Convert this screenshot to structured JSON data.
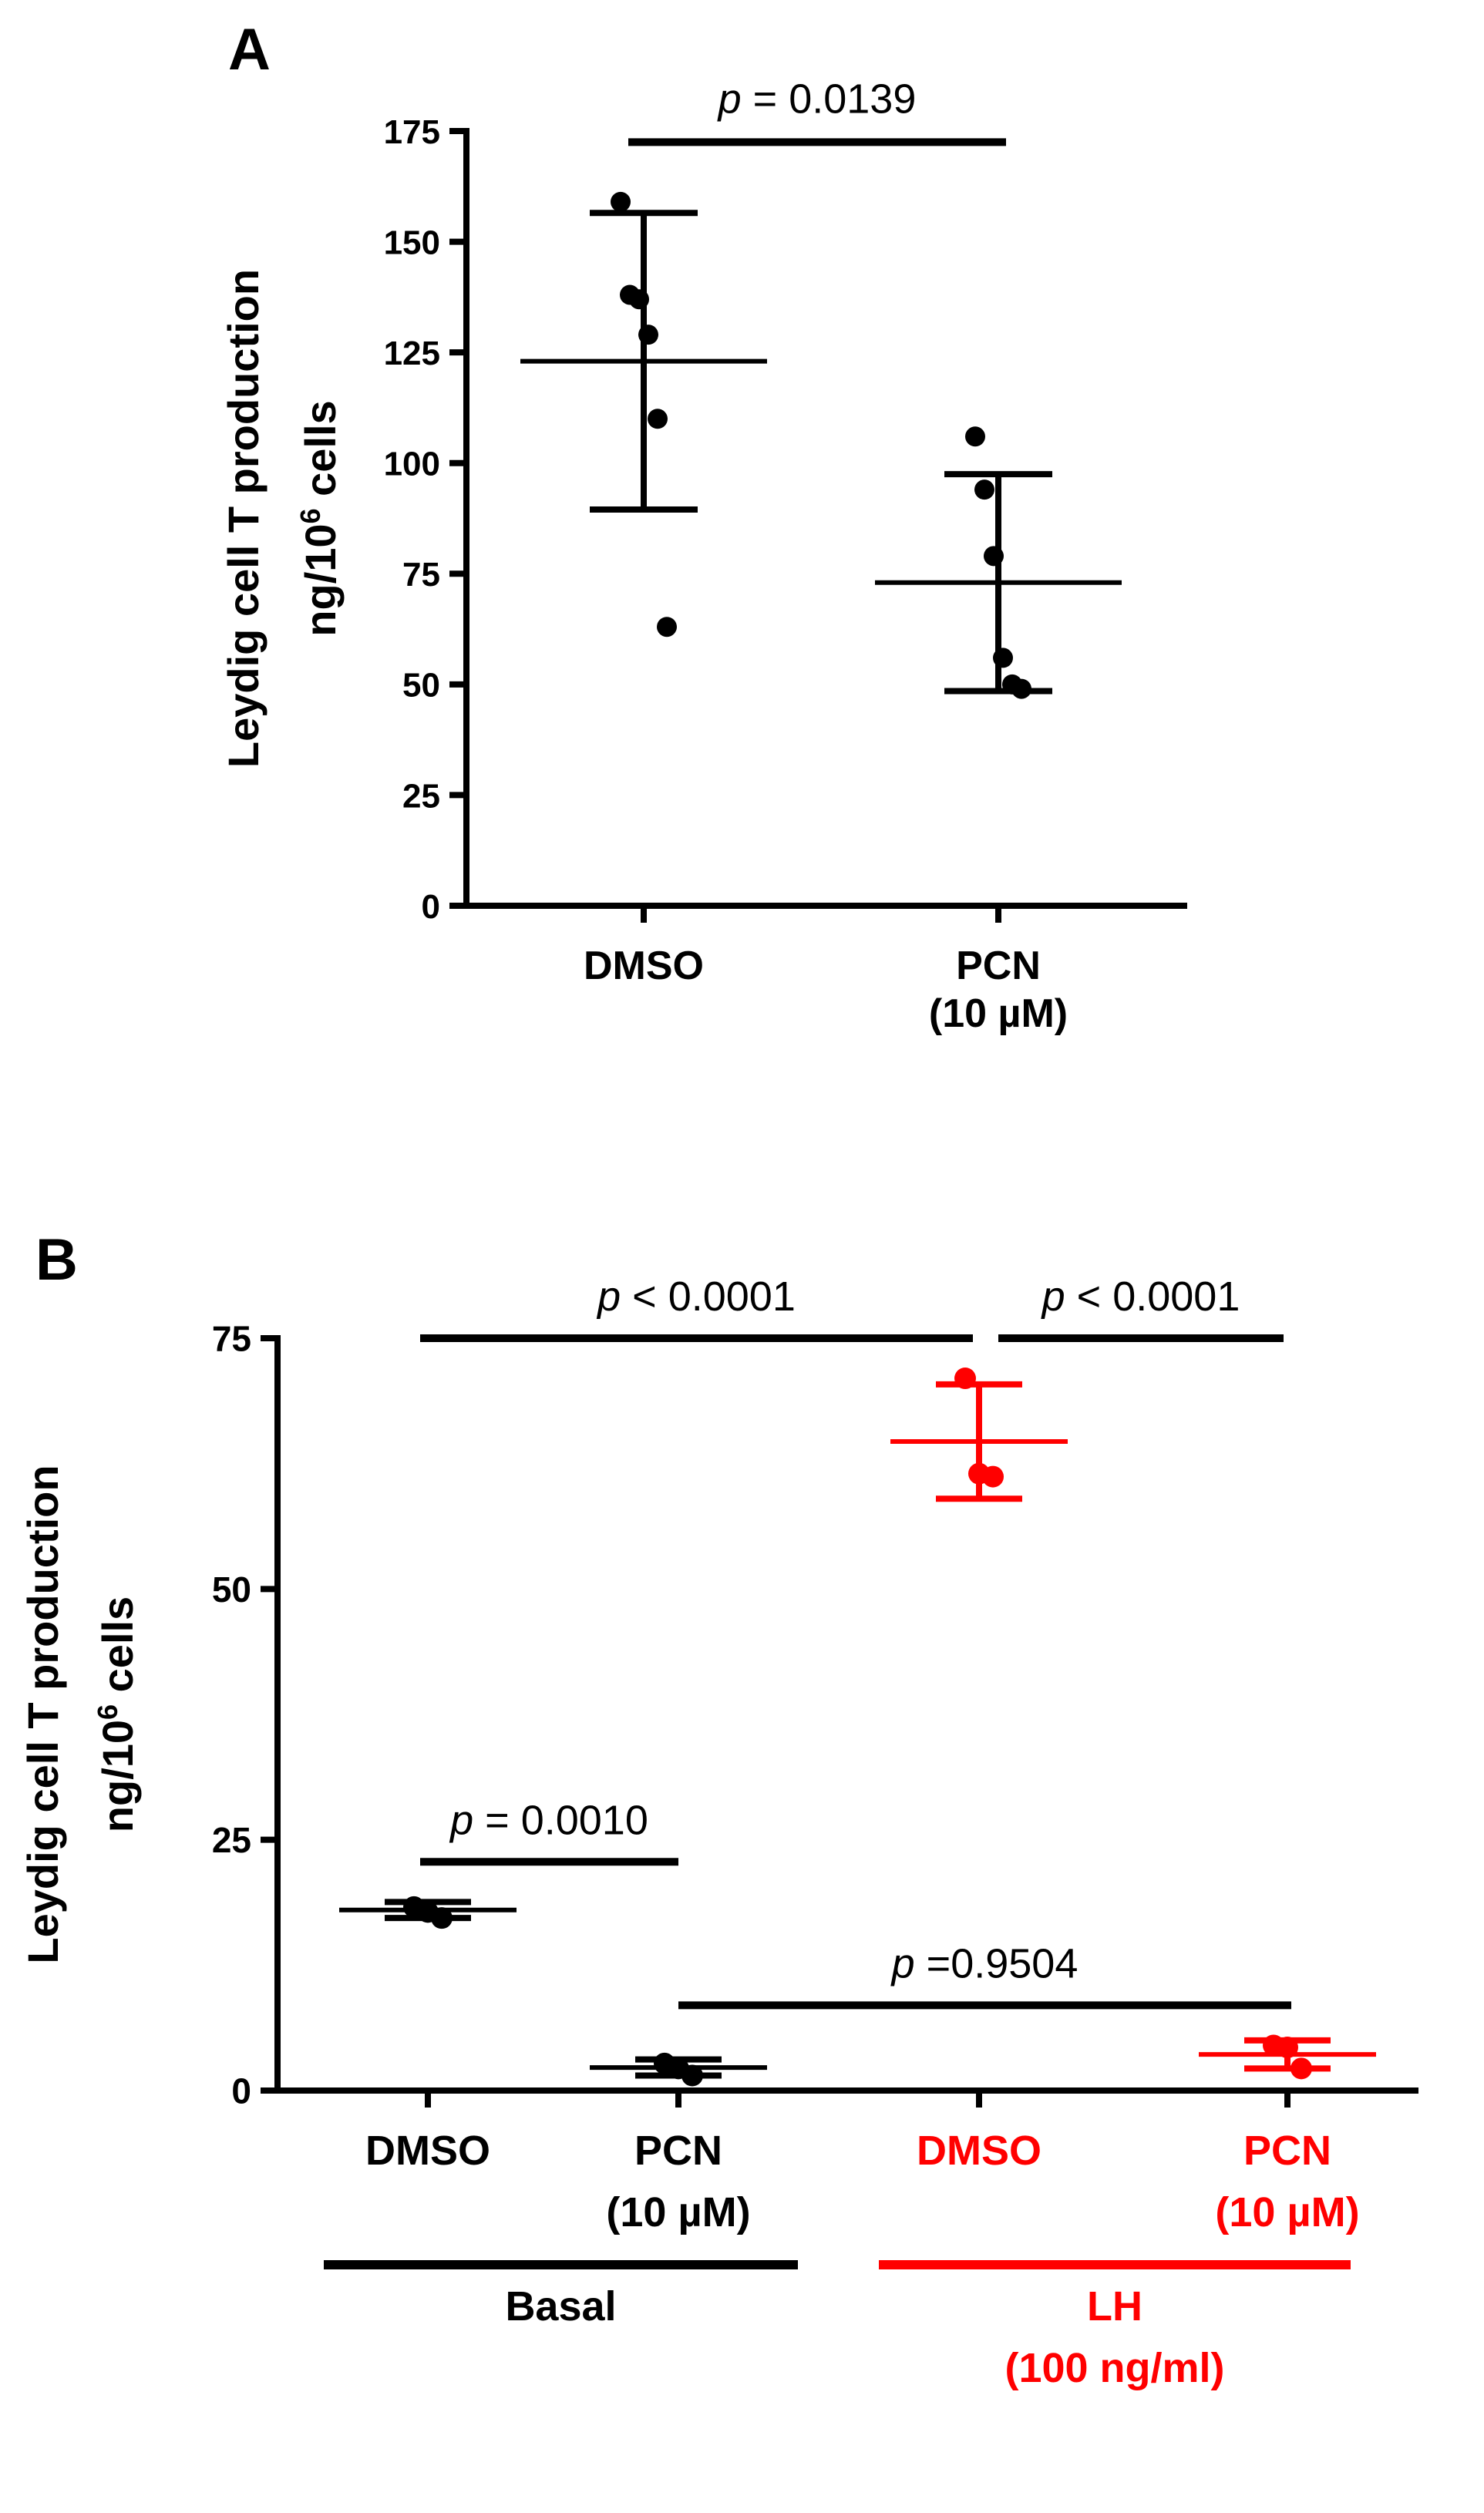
{
  "colors": {
    "black": "#000000",
    "red": "#ff0000"
  },
  "chart_data": [
    {
      "panel": "A",
      "type": "scatter",
      "ylabel_line1": "Leydig cell T production",
      "ylabel_line2_prefix": "ng/10",
      "ylabel_line2_sup": "6",
      "ylabel_line2_suffix": " cells",
      "ylim": [
        0,
        175
      ],
      "yticks": [
        0,
        25,
        50,
        75,
        100,
        125,
        150,
        175
      ],
      "groups": [
        {
          "label_lines": [
            "DMSO"
          ],
          "color": "#000000",
          "mean": 123,
          "sd_low": 89.5,
          "sd_high": 156.5,
          "points": [
            159,
            138,
            137,
            129,
            110,
            63
          ]
        },
        {
          "label_lines": [
            "PCN",
            "(10 µM)"
          ],
          "color": "#000000",
          "mean": 73,
          "sd_low": 48.5,
          "sd_high": 97.5,
          "points": [
            106,
            94,
            79,
            56,
            50,
            49
          ]
        }
      ],
      "comparisons": [
        {
          "p_symbol": "p",
          "p_rest": " = 0.0139",
          "from": 0,
          "to": 1,
          "y": 172.5
        }
      ]
    },
    {
      "panel": "B",
      "type": "scatter",
      "ylabel_line1": "Leydig cell T production",
      "ylabel_line2_prefix": "ng/10",
      "ylabel_line2_sup": "6",
      "ylabel_line2_suffix": " cells",
      "ylim": [
        0,
        75
      ],
      "yticks": [
        0,
        25,
        50,
        75
      ],
      "groups": [
        {
          "label_lines": [
            "DMSO"
          ],
          "color": "#000000",
          "mean": 18,
          "sd_low": 17.2,
          "sd_high": 18.8,
          "points": [
            18.3,
            17.8,
            17.2
          ]
        },
        {
          "label_lines": [
            "PCN",
            "(10 µM)"
          ],
          "color": "#000000",
          "mean": 2.3,
          "sd_low": 1.5,
          "sd_high": 3.1,
          "points": [
            2.7,
            2.2,
            1.5
          ]
        },
        {
          "label_lines": [
            "DMSO"
          ],
          "color": "#ff0000",
          "mean": 64.7,
          "sd_low": 59,
          "sd_high": 70.4,
          "points": [
            71,
            61.5,
            61.2
          ]
        },
        {
          "label_lines": [
            "PCN",
            "(10 µM)"
          ],
          "color": "#ff0000",
          "mean": 3.6,
          "sd_low": 2.2,
          "sd_high": 5,
          "points": [
            4.5,
            4.3,
            2.2
          ]
        }
      ],
      "comparisons": [
        {
          "p_symbol": "p",
          "p_rest": " < 0.0001",
          "from": 0,
          "to": 2,
          "y": 75,
          "end_gap": "left"
        },
        {
          "p_symbol": "p",
          "p_rest": " < 0.0001",
          "from": 2,
          "to": 3,
          "y": 75,
          "end_gap": "right"
        },
        {
          "p_symbol": "p",
          "p_rest": " = 0.0010",
          "from": 0,
          "to": 1,
          "y": 22.8
        },
        {
          "p_symbol": "p",
          "p_rest": " =0.9504",
          "from": 1,
          "to": 3,
          "y": 8.5
        }
      ],
      "treatment_groups": [
        {
          "label_lines": [
            "Basal"
          ],
          "color": "#000000",
          "from": 0,
          "to": 1
        },
        {
          "label_lines": [
            "LH",
            "(100 ng/ml)"
          ],
          "color": "#ff0000",
          "from": 2,
          "to": 3
        }
      ]
    }
  ]
}
